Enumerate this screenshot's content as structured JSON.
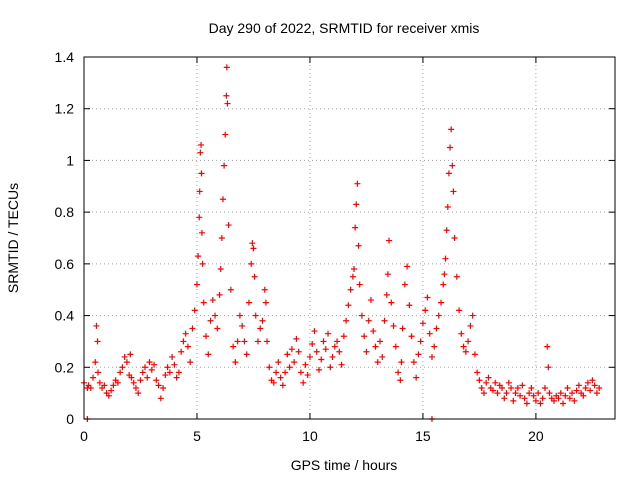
{
  "chart_data": {
    "type": "scatter",
    "title": "Day 290 of 2022, SRMTID for receiver xmis",
    "xlabel": "GPS time / hours",
    "ylabel": "SRMTID / TECUs",
    "xlim": [
      0,
      23.5
    ],
    "ylim": [
      0,
      1.4
    ],
    "x_ticks": [
      0,
      5,
      10,
      15,
      20
    ],
    "x_tick_labels": [
      "0",
      "5",
      "10",
      "15",
      "20"
    ],
    "y_ticks": [
      0,
      0.2,
      0.4,
      0.6,
      0.8,
      1.0,
      1.2,
      1.4
    ],
    "y_tick_labels": [
      "0",
      "0.2",
      "0.4",
      "0.6",
      "0.8",
      "1",
      "1.2",
      "1.4"
    ],
    "grid": true,
    "marker": "+",
    "series": [
      {
        "name": "SRMTID",
        "color": "#ff0000",
        "x": [
          0.0,
          0.15,
          0.2,
          0.3,
          0.4,
          0.5,
          0.55,
          0.6,
          0.62,
          0.7,
          0.8,
          0.9,
          1.0,
          1.1,
          1.2,
          1.3,
          1.4,
          1.5,
          1.6,
          1.7,
          1.8,
          1.9,
          2.0,
          2.05,
          2.1,
          2.2,
          2.3,
          2.4,
          2.5,
          2.6,
          2.7,
          2.8,
          2.9,
          3.0,
          3.1,
          3.2,
          3.3,
          3.4,
          3.5,
          3.6,
          3.7,
          3.8,
          3.9,
          4.0,
          4.1,
          4.2,
          4.3,
          4.4,
          4.5,
          4.6,
          4.7,
          4.8,
          4.9,
          5.0,
          5.05,
          5.1,
          5.12,
          5.15,
          5.18,
          5.2,
          5.22,
          5.25,
          5.3,
          5.4,
          5.5,
          5.6,
          5.7,
          5.8,
          5.9,
          6.0,
          6.05,
          6.1,
          6.15,
          6.2,
          6.25,
          6.3,
          6.32,
          6.35,
          6.4,
          6.5,
          6.6,
          6.7,
          6.8,
          6.9,
          7.0,
          7.1,
          7.2,
          7.3,
          7.4,
          7.45,
          7.5,
          7.55,
          7.6,
          7.7,
          7.8,
          7.9,
          8.0,
          8.05,
          8.1,
          8.2,
          8.3,
          8.4,
          8.5,
          8.6,
          8.7,
          8.8,
          8.9,
          9.0,
          9.1,
          9.2,
          9.3,
          9.4,
          9.5,
          9.6,
          9.7,
          9.8,
          9.9,
          10.0,
          10.1,
          10.2,
          10.3,
          10.4,
          10.5,
          10.6,
          10.7,
          10.8,
          10.9,
          11.0,
          11.1,
          11.2,
          11.3,
          11.4,
          11.5,
          11.6,
          11.7,
          11.8,
          11.9,
          11.95,
          12.0,
          12.05,
          12.1,
          12.15,
          12.2,
          12.3,
          12.4,
          12.5,
          12.6,
          12.7,
          12.8,
          12.9,
          13.0,
          13.1,
          13.2,
          13.3,
          13.4,
          13.45,
          13.5,
          13.6,
          13.7,
          13.8,
          13.9,
          14.0,
          14.05,
          14.1,
          14.2,
          14.3,
          14.4,
          14.5,
          14.6,
          14.7,
          14.8,
          14.9,
          15.0,
          15.1,
          15.2,
          15.3,
          15.4,
          15.5,
          15.6,
          15.7,
          15.8,
          15.9,
          15.95,
          16.0,
          16.05,
          16.1,
          16.15,
          16.2,
          16.25,
          16.3,
          16.35,
          16.4,
          16.5,
          16.6,
          16.7,
          16.8,
          16.9,
          17.0,
          17.1,
          17.2,
          17.3,
          17.4,
          17.5,
          17.6,
          17.7,
          17.8,
          17.9,
          18.0,
          18.1,
          18.2,
          18.3,
          18.4,
          18.5,
          18.6,
          18.7,
          18.8,
          18.9,
          19.0,
          19.1,
          19.2,
          19.3,
          19.4,
          19.5,
          19.6,
          19.7,
          19.8,
          19.9,
          20.0,
          20.1,
          20.2,
          20.3,
          20.4,
          20.5,
          20.55,
          20.6,
          20.7,
          20.8,
          20.9,
          21.0,
          21.1,
          21.2,
          21.3,
          21.4,
          21.5,
          21.6,
          21.7,
          21.8,
          21.9,
          22.0,
          22.1,
          22.2,
          22.3,
          22.4,
          22.5,
          22.6,
          22.7,
          22.8,
          0.15,
          15.4
        ],
        "y": [
          0.14,
          0.12,
          0.13,
          0.12,
          0.16,
          0.22,
          0.36,
          0.3,
          0.18,
          0.14,
          0.12,
          0.13,
          0.1,
          0.09,
          0.11,
          0.13,
          0.15,
          0.14,
          0.18,
          0.2,
          0.24,
          0.22,
          0.17,
          0.25,
          0.16,
          0.14,
          0.12,
          0.1,
          0.15,
          0.18,
          0.2,
          0.16,
          0.22,
          0.19,
          0.21,
          0.15,
          0.13,
          0.08,
          0.12,
          0.17,
          0.2,
          0.18,
          0.24,
          0.21,
          0.16,
          0.18,
          0.26,
          0.3,
          0.33,
          0.28,
          0.22,
          0.35,
          0.42,
          0.52,
          0.63,
          0.78,
          0.88,
          1.03,
          1.06,
          0.95,
          0.72,
          0.6,
          0.45,
          0.32,
          0.25,
          0.38,
          0.46,
          0.4,
          0.35,
          0.48,
          0.58,
          0.7,
          0.85,
          0.98,
          1.1,
          1.25,
          1.36,
          1.22,
          0.75,
          0.5,
          0.28,
          0.22,
          0.3,
          0.4,
          0.36,
          0.3,
          0.25,
          0.45,
          0.6,
          0.68,
          0.66,
          0.55,
          0.4,
          0.3,
          0.35,
          0.38,
          0.5,
          0.45,
          0.3,
          0.2,
          0.15,
          0.14,
          0.18,
          0.22,
          0.16,
          0.13,
          0.18,
          0.25,
          0.2,
          0.27,
          0.22,
          0.31,
          0.26,
          0.18,
          0.14,
          0.21,
          0.17,
          0.24,
          0.29,
          0.34,
          0.26,
          0.19,
          0.23,
          0.3,
          0.27,
          0.33,
          0.2,
          0.24,
          0.28,
          0.3,
          0.26,
          0.21,
          0.32,
          0.38,
          0.44,
          0.5,
          0.55,
          0.58,
          0.74,
          0.83,
          0.91,
          0.67,
          0.52,
          0.4,
          0.32,
          0.26,
          0.38,
          0.46,
          0.34,
          0.28,
          0.22,
          0.3,
          0.24,
          0.38,
          0.48,
          0.56,
          0.69,
          0.45,
          0.36,
          0.28,
          0.18,
          0.15,
          0.22,
          0.35,
          0.52,
          0.59,
          0.44,
          0.32,
          0.22,
          0.16,
          0.25,
          0.3,
          0.37,
          0.42,
          0.47,
          0.33,
          0.24,
          0.28,
          0.35,
          0.4,
          0.45,
          0.52,
          0.56,
          0.62,
          0.73,
          0.82,
          0.95,
          1.05,
          1.12,
          0.98,
          0.88,
          0.7,
          0.55,
          0.42,
          0.33,
          0.28,
          0.26,
          0.3,
          0.36,
          0.4,
          0.25,
          0.18,
          0.15,
          0.12,
          0.1,
          0.14,
          0.16,
          0.12,
          0.11,
          0.14,
          0.1,
          0.13,
          0.12,
          0.08,
          0.1,
          0.14,
          0.12,
          0.07,
          0.1,
          0.12,
          0.09,
          0.13,
          0.08,
          0.06,
          0.1,
          0.12,
          0.09,
          0.07,
          0.1,
          0.06,
          0.08,
          0.12,
          0.28,
          0.2,
          0.1,
          0.08,
          0.07,
          0.09,
          0.08,
          0.1,
          0.06,
          0.09,
          0.12,
          0.08,
          0.1,
          0.07,
          0.11,
          0.13,
          0.1,
          0.09,
          0.12,
          0.14,
          0.11,
          0.15,
          0.13,
          0.1,
          0.12,
          0.0,
          0.0
        ]
      }
    ]
  }
}
